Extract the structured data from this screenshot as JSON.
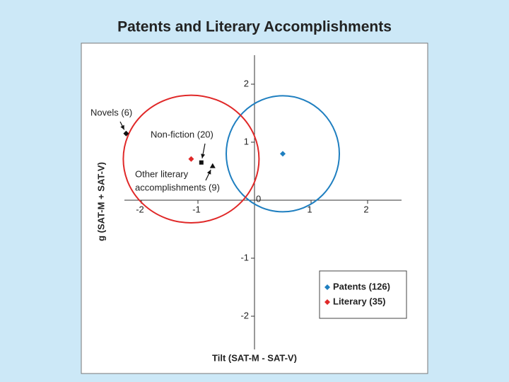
{
  "chart_data": {
    "type": "scatter",
    "title": "Patents and Literary Accomplishments",
    "x_label": "Tilt (SAT-M - SAT-V)",
    "y_label": "g (SAT-M + SAT-V)",
    "xlim": [
      -2.3,
      2.5
    ],
    "ylim": [
      -2.5,
      2.5
    ],
    "xticks": [
      -2,
      -1,
      0,
      1,
      2
    ],
    "yticks": [
      -2,
      -1,
      1,
      2
    ],
    "series": [
      {
        "name": "Patents (126)",
        "color": "#1f7fc0",
        "x": [
          0.5
        ],
        "values": [
          0.8
        ],
        "radius_x": [
          1
        ],
        "radius_y": [
          1
        ]
      },
      {
        "name": "Literary (35)",
        "color": "#e02828",
        "x": [
          -1.12
        ],
        "values": [
          0.71
        ],
        "radius_x": [
          1.2
        ],
        "radius_y": [
          1.1
        ]
      }
    ],
    "subgroups": [
      {
        "label": [
          "Novels (6)"
        ],
        "marker": "diamond",
        "x": -2.27,
        "y": 1.15
      },
      {
        "label": [
          "Non-fiction (20)"
        ],
        "marker": "square",
        "x": -0.94,
        "y": 0.65
      },
      {
        "label": [
          "Other literary",
          "accomplishments (9)"
        ],
        "marker": "triangle",
        "x": -0.74,
        "y": 0.59
      }
    ]
  }
}
